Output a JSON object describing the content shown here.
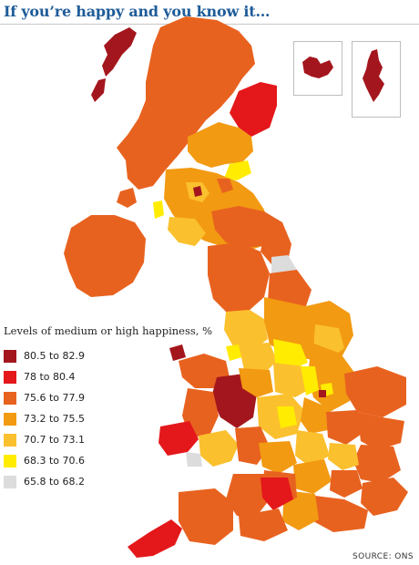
{
  "title": "If you’re happy and you know it…",
  "legend": {
    "title": "Levels of medium or high happiness, %",
    "items": [
      {
        "label": "80.5 to 82.9",
        "color": "#a4161d"
      },
      {
        "label": "78 to 80.4",
        "color": "#e4181b"
      },
      {
        "label": "75.6 to 77.9",
        "color": "#e8621f"
      },
      {
        "label": "73.2 to 75.5",
        "color": "#f29a12"
      },
      {
        "label": "70.7 to 73.1",
        "color": "#fbc02e"
      },
      {
        "label": "68.3 to 70.6",
        "color": "#ffec00"
      },
      {
        "label": "65.8 to 68.2",
        "color": "#dcdcdc"
      }
    ]
  },
  "source": "SOURCE: ONS"
}
